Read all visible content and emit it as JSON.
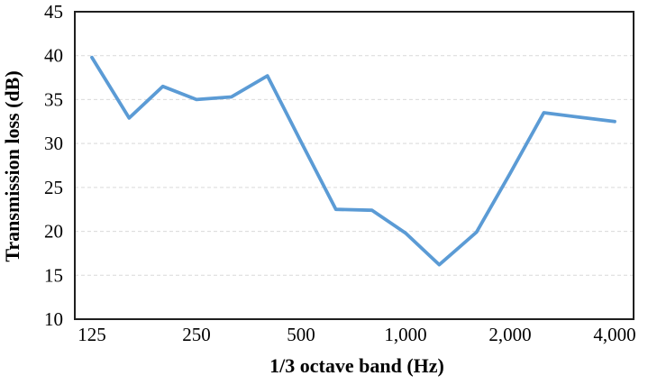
{
  "chart_data": {
    "type": "line",
    "title": "",
    "xlabel": "1/3 octave band (Hz)",
    "ylabel": "Transmission loss (dB)",
    "x_scale": "log",
    "x": [
      125,
      160,
      200,
      250,
      315,
      400,
      500,
      630,
      800,
      1000,
      1250,
      1600,
      2000,
      2500,
      3150,
      4000
    ],
    "values": [
      39.8,
      32.9,
      36.5,
      35.0,
      35.3,
      37.7,
      30.2,
      22.5,
      22.4,
      19.8,
      16.2,
      19.9,
      26.6,
      33.5,
      33.0,
      32.5
    ],
    "series_name": "Transmission loss",
    "x_ticks": [
      {
        "value": 125,
        "label": "125"
      },
      {
        "value": 250,
        "label": "250"
      },
      {
        "value": 500,
        "label": "500"
      },
      {
        "value": 1000,
        "label": "1,000"
      },
      {
        "value": 2000,
        "label": "2,000"
      },
      {
        "value": 4000,
        "label": "4,000"
      }
    ],
    "y_ticks": [
      45,
      40,
      35,
      30,
      25,
      20,
      15,
      10
    ],
    "ylim": [
      10,
      45
    ],
    "xlim_octaves_from_125": [
      -0.164,
      5.181
    ],
    "grid": "horizontal-dashed",
    "legend": "none",
    "colors": {
      "line": "#5B9BD5",
      "grid": "#D9D9D9",
      "axis_border": "#1f1f1f",
      "text": "#000000",
      "background": "#FFFFFF"
    }
  }
}
